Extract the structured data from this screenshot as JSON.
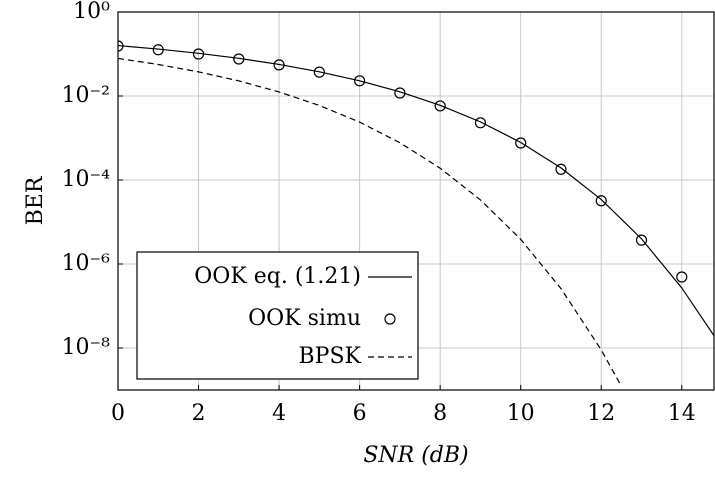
{
  "chart_data": {
    "type": "line",
    "xlabel": "SNR (dB)",
    "ylabel": "BER",
    "xlim": [
      0,
      14.8
    ],
    "xticks": [
      0,
      2,
      4,
      6,
      8,
      10,
      12,
      14
    ],
    "ylim": [
      1e-09,
      1
    ],
    "yscale": "log",
    "yticks": [
      {
        "value": 1,
        "label": "10⁰"
      },
      {
        "value": 0.01,
        "label": "10⁻²"
      },
      {
        "value": 0.0001,
        "label": "10⁻⁴"
      },
      {
        "value": 1e-06,
        "label": "10⁻⁶"
      },
      {
        "value": 1e-08,
        "label": "10⁻⁸"
      }
    ],
    "grid": true,
    "legend": "lower left",
    "series": [
      {
        "name": "OOK eq. (1.21)",
        "color": "#000000",
        "style": "solid",
        "x": [
          0,
          1,
          2,
          3,
          4,
          5,
          6,
          7,
          8,
          9,
          10,
          11,
          12,
          13,
          14,
          14.8
        ],
        "values": [
          0.1587,
          0.1309,
          0.104,
          0.0789,
          0.0565,
          0.0377,
          0.023,
          0.01258,
          0.006,
          0.00242,
          0.000783,
          0.000194,
          3.43e-05,
          3.97e-06,
          2.69e-07,
          1.96e-08
        ]
      },
      {
        "name": "OOK simu",
        "color": "#000000",
        "style": "markers",
        "x": [
          0,
          1,
          2,
          3,
          4,
          5,
          6,
          7,
          8,
          9,
          10,
          11,
          12,
          13,
          14
        ],
        "values": [
          0.155,
          0.126,
          0.1,
          0.076,
          0.055,
          0.037,
          0.023,
          0.0118,
          0.0058,
          0.0023,
          0.00076,
          0.00018,
          3.2e-05,
          3.7e-06,
          4.9e-07
        ]
      },
      {
        "name": "BPSK",
        "color": "#000000",
        "style": "dashed",
        "x": [
          0,
          1,
          2,
          3,
          4,
          5,
          6,
          7,
          8,
          9,
          10,
          11,
          12,
          12.5
        ],
        "values": [
          0.0786,
          0.0563,
          0.0375,
          0.0229,
          0.0125,
          0.00595,
          0.00239,
          0.000773,
          0.000191,
          3.36e-05,
          3.87e-06,
          2.6e-07,
          9e-09,
          1.23e-09
        ]
      }
    ]
  }
}
